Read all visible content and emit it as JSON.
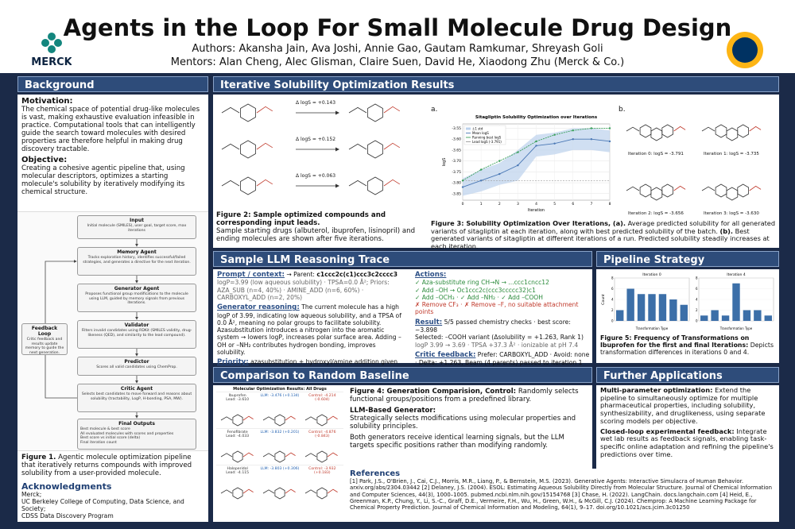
{
  "header": {
    "title": "Agents in the Loop For Small Molecule Drug Design",
    "authors": "Authors: Akansha Jain, Ava Joshi, Annie Gao, Gautam Ramkumar, Shreyash Goli",
    "mentors": "Mentors: Alan Cheng, Alec Glisman, Claire Suen, David He, Xiaodong Zhu (Merck & Co.)",
    "logo": "MERCK"
  },
  "background": {
    "heading": "Background",
    "motivation": {
      "heading": "Motivation:",
      "text": "The chemical space of potential drug-like molecules is vast, making exhaustive evaluation infeasible in practice. Computational tools that can intelligently guide the search toward molecules with desired properties are therefore helpful in making drug discovery tractable."
    },
    "objective": {
      "heading": "Objective:",
      "text": "Creating a cohesive agentic pipeline that, using molecular descriptors, optimizes a starting molecule's solubility by iteratively modifying its chemical structure."
    },
    "figure1": {
      "nodes": [
        {
          "title": "Input",
          "text": "Initial molecule (SMILES), user goal, target score, max iterations"
        },
        {
          "title": "Memory Agent",
          "text": "Tracks exploration history, identifies successful/failed strategies, and generates a directive for the next iteration."
        },
        {
          "title": "Generator Agent",
          "text": "Proposes functional group modifications to the molecule using LLM, guided by memory signals from previous iterations."
        },
        {
          "title": "Validator",
          "text": "Filters invalid candidates using RDKit (SMILES validity, drug-likeness (QED), and similarity to the lead compound)."
        },
        {
          "title": "Predictor",
          "text": "Scores all valid candidates using ChemProp."
        },
        {
          "title": "Critic Agent",
          "text": "Selects best candidates to move forward and reasons about solubility (tractability, LogP, H-bonding, PSA, MW)."
        }
      ],
      "outputs": {
        "title": "Final Outputs",
        "items": [
          "Best molecule & best score",
          "All evaluated molecules with scores and properties",
          "Best score vs initial score (delta)",
          "Final iteration count"
        ]
      },
      "feedback": {
        "title": "Feedback Loop",
        "text": "Critic feedback and results update memory to guide the next generation."
      },
      "caption_label": "Figure 1.",
      "caption": "Agentic molecule optimization pipeline that iteratively returns compounds with improved solubility from a user-provided molecule."
    },
    "acknowledgments": {
      "heading": "Acknowledgments",
      "lines": [
        "Merck;",
        "UC Berkeley College of Computing, Data Science, and Society;",
        "CDSS Data Discovery Program"
      ]
    }
  },
  "results": {
    "heading": "Iterative Solubility Optimization Results",
    "figure2": {
      "deltas": [
        "Δ logS = +0.143",
        "Δ logS = +0.152",
        "Δ logS = +0.063"
      ],
      "caption_label": "Figure 2: Sample optimized compounds and corresponding input leads.",
      "caption": "Sample starting drugs (albuterol, ibuprofen, lisinopril) and ending molecules are shown after five iterations."
    },
    "figure3": {
      "panel_a": "a.",
      "panel_b": "b.",
      "chart": {
        "type": "line",
        "title": "Sitagliptin Solubility Optimization over Iterations",
        "xlabel": "Iteration",
        "ylabel": "logS",
        "x": [
          0,
          1,
          2,
          3,
          4,
          5,
          6,
          7,
          8
        ],
        "xlim": [
          0,
          8
        ],
        "xticks": [
          0,
          1,
          2,
          3,
          4,
          5,
          6,
          7,
          8
        ],
        "ylim": [
          -3.88,
          -3.53
        ],
        "yticks": [
          {
            "value": -3.85,
            "label": "-3.85"
          },
          {
            "value": -3.8,
            "label": "-3.80"
          },
          {
            "value": -3.75,
            "label": "-3.75"
          },
          {
            "value": -3.7,
            "label": "-3.70"
          },
          {
            "value": -3.65,
            "label": "-3.65"
          },
          {
            "value": -3.6,
            "label": "-3.60"
          },
          {
            "value": -3.55,
            "label": "-3.55"
          }
        ],
        "band": {
          "name": "±1 std",
          "color": "#bcd2ec",
          "values": [
            0.04,
            0.05,
            0.05,
            0.07,
            0.05,
            0.05,
            0.05,
            0.05,
            0.05
          ]
        },
        "series": [
          {
            "name": "Mean logS",
            "color": "#4a78b5",
            "values": [
              -3.82,
              -3.79,
              -3.76,
              -3.72,
              -3.63,
              -3.62,
              -3.6,
              -3.6,
              -3.61
            ]
          },
          {
            "name": "Running best logS",
            "color": "#3aa05a",
            "values": [
              -3.79,
              -3.74,
              -3.7,
              -3.66,
              -3.61,
              -3.58,
              -3.56,
              -3.55,
              -3.55
            ]
          }
        ],
        "reference": {
          "name": "Lead logS (-3.791)",
          "value": -3.791,
          "color": "#999999"
        }
      },
      "iterations": [
        "Iteration 0: logS = -3.791",
        "Iteration 1: logS = -3.735",
        "Iteration 2: logS = -3.656",
        "Iteration 3: logS = -3.630"
      ],
      "caption_label": "Figure 3: Solubility Optimization Over Iterations, (a).",
      "caption_a": "Average predicted solubility for all generated variants of sitagliptin at each iteration, along with best predicted solubility of the batch.",
      "caption_b_label": "(b).",
      "caption_b": "Best generated variants of sitagliptin at different iterations of a run. Predicted solubility steadily increases at each iteration."
    }
  },
  "trace": {
    "heading": "Sample LLM Reasoning Trace",
    "prompt": {
      "heading": "Prompt / context:",
      "parent_label": "→ Parent:",
      "parent": "c1ccc2c(c1)ccc3c2cccc3",
      "details": "logP=3.99 (low aqueous solubility) · TPSA=0.0 Å²; Priors: AZA_SUB (n=4, 40%) · AMINE_ADD (n=6, 60%) · CARBOXYL_ADD (n=2, 20%)"
    },
    "generator": {
      "heading": "Generator reasoning:",
      "text": "The current molecule has a high logP of 3.99, indicating low aqueous solubility, and a TPSA of 0.0 Å², meaning no polar groups to facilitate solubility. Azasubstitution introduces a nitrogen into the aromatic system → lowers logP, increases polar surface area. Adding –OH or –NH₂ contributes hydrogen bonding, improves solubility."
    },
    "priority": {
      "heading": "Priority:",
      "text": "azasubstitution + hydroxyl/amine addition given high logP & zero PSA."
    },
    "actions": {
      "heading": "Actions:",
      "accepted": [
        "✓ Aza-substitute ring CH→N → ...ccc1cncc12",
        "✓ Add –OH → Oc1ccc2c(ccc3ccccc32)c1",
        "✓ Add –OCH₃ · ✓ Add –NH₂ · ✓ Add –COOH"
      ],
      "rejected": [
        "✗ Remove CF₃ · ✗ Remove –F, no suitable attachment points"
      ]
    },
    "result": {
      "heading": "Result:",
      "lines": [
        "5/5 passed chemistry checks · best score: −3.898",
        "Selected: –COOH variant (Δsolubility = +1.263, Rank 1)",
        "logP 3.99 → 3.69 · TPSA +37.3 Å² · ionizable at pH 7.4"
      ]
    },
    "critic": {
      "heading": "Critic feedback:",
      "text": "Prefer: CARBOXYL_ADD · Avoid: none · Delta: +1.263, Beam (4 parents) passed to iteration 1"
    }
  },
  "pipeline": {
    "heading": "Pipeline Strategy",
    "chart": {
      "type": "bar",
      "ylabel": "Count",
      "xlabel": "Transformation Type",
      "ylim": [
        0,
        8
      ],
      "yticks": [
        0,
        2,
        4,
        6,
        8
      ],
      "color": "#3c6fa8",
      "panels": [
        {
          "title": "Iteration 0",
          "categories": [
            null,
            null,
            null,
            null,
            null,
            null,
            null
          ],
          "values": [
            2,
            6,
            5,
            5,
            5,
            4,
            3
          ]
        },
        {
          "title": "Iteration 4",
          "categories": [
            null,
            null,
            null,
            null,
            null,
            null,
            null
          ],
          "values": [
            1,
            2,
            1,
            7,
            2,
            2,
            1
          ]
        }
      ]
    },
    "caption_label": "Figure 5: Frequency of Transformations on Ibuprofen for the first and final Iterations:",
    "caption": "Depicts transformation differences in iterations 0 and 4."
  },
  "comparison": {
    "heading": "Comparison to Random Baseline",
    "table": {
      "title": "Molecular Optimization Results: All Drugs",
      "rows": [
        [
          "Ibuprofen\nLead: -3.610",
          "LLM: -3.476 (+0.134)",
          "Control: -4.214\n(-0.604)"
        ],
        [
          "Fenofibrate\nLead: -4.033",
          "LLM: -3.832 (+0.201)",
          "Control: -4.876\n(-0.843)"
        ],
        [
          "Haloperidol\nLead: -4.115",
          "LLM: -3.803 (+0.306)",
          "Control: -3.932\n(+0.183)"
        ]
      ]
    },
    "caption_label": "Figure 4: Generation Comparision, Control:",
    "caption": "Randomly selects functional groups/positions from a predefined library.",
    "llm_heading": "LLM-Based Generator:",
    "llm_text": "Strategically selects modifications using molecular properties and solubility principles.",
    "note": "Both generators receive identical learning signals, but the LLM targets specific positions rather than modifying randomly."
  },
  "further": {
    "heading": "Further Applications",
    "items": [
      {
        "heading": "Multi-parameter optimization:",
        "text": "Extend the pipeline to simultaneously optimize for multiple pharmaceutical properties, including solubility, synthesizability, and druglikeness, using separate scoring models per objective."
      },
      {
        "heading": "Closed-loop experimental feedback:",
        "text": "Integrate wet lab results as feedback signals, enabling task-specific online adaptation and refining the pipeline's predictions over time."
      }
    ]
  },
  "references": {
    "heading": "References",
    "items": [
      "[1] Park, J.S., O'Brien, J., Cai, C.J., Morris, M.R., Liang, P., & Bernstein, M.S. (2023). Generative Agents: Interactive Simulacra of Human Behavior. arxiv.org/abs/2304.03442",
      "[2] Delaney, J.S. (2004). ESOL: Estimating Aqueous Solubility Directly from Molecular Structure. Journal of Chemical Information and Computer Sciences, 44(3), 1000–1005. pubmed.ncbi.nlm.nih.gov/15154768",
      "[3] Chase, H. (2022). LangChain. docs.langchain.com",
      "[4] Heid, E., Greenman, K.P., Chung, Y., Li, S.-C., Graff, D.E., Vermeire, F.H., Wu, H., Green, W.H., & McGill, C.J. (2024). Chemprop: A Machine Learning Package for Chemical Property Prediction. Journal of Chemical Information and Modeling, 64(1), 9–17. doi.org/10.1021/acs.jcim.3c01250"
    ]
  }
}
